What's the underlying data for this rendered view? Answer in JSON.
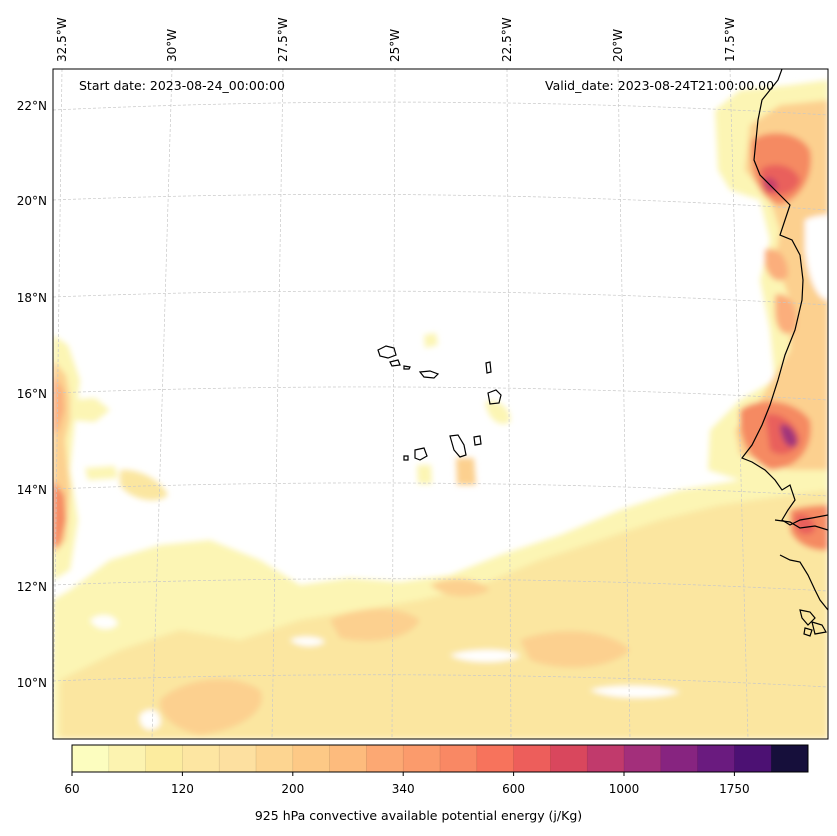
{
  "map": {
    "start_date_label": "Start date: 2023-08-24_00:00:00",
    "valid_date_label": "Valid_date: 2023-08-24T21:00:00.00",
    "lon_labels": [
      "32.5°W",
      "30°W",
      "27.5°W",
      "25°W",
      "22.5°W",
      "20°W",
      "17.5°W"
    ],
    "lat_labels": [
      "22°N",
      "20°N",
      "18°N",
      "16°N",
      "14°N",
      "12°N",
      "10°N"
    ],
    "field_colors": [
      "#fcf5b4",
      "#fbe6a0",
      "#fcd08f",
      "#fbae7b",
      "#f58a62",
      "#e9605c",
      "#c8406b",
      "#a0357a"
    ],
    "coastline_color": "#000000",
    "grid_color": "#c8c8c8"
  },
  "colorbar": {
    "label": "925 hPa convective available potential energy (j/Kg)",
    "tick_labels": [
      "60",
      "120",
      "200",
      "340",
      "600",
      "1000",
      "1750"
    ],
    "colors": [
      "#fcfdbf",
      "#fcf3b0",
      "#fcec9f",
      "#fde6a2",
      "#fde0a0",
      "#fdd591",
      "#fdc986",
      "#fdbb7d",
      "#fca873",
      "#fb9b6c",
      "#f98864",
      "#f7735c",
      "#ed5e5b",
      "#d9475d",
      "#c13a6c",
      "#a32f7b",
      "#872480",
      "#6a1b7f",
      "#4c1173",
      "#160f3b"
    ]
  }
}
